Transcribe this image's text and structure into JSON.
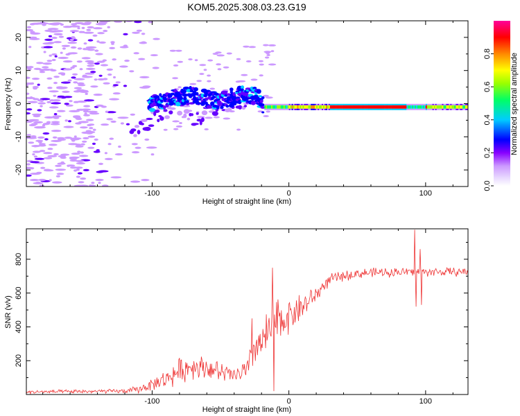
{
  "title": "KOM5.2025.308.03.23.G19",
  "chart_data": [
    {
      "type": "heatmap",
      "name": "spectrogram",
      "xlabel": "Height of straight line (km)",
      "ylabel": "Frequency (Hz)",
      "xlim": [
        -192,
        131
      ],
      "ylim": [
        -25,
        25
      ],
      "xticks": [
        {
          "v": -100,
          "label": "-100"
        },
        {
          "v": 0,
          "label": "0"
        },
        {
          "v": 100,
          "label": "100"
        }
      ],
      "yticks": [
        {
          "v": -20,
          "label": "-20"
        },
        {
          "v": -10,
          "label": "-10"
        },
        {
          "v": 0,
          "label": "0"
        },
        {
          "v": 10,
          "label": "10"
        },
        {
          "v": 20,
          "label": "20"
        }
      ],
      "colorbar": {
        "label": "Normalized spectral amplitude",
        "range": [
          0,
          1
        ],
        "ticks": [
          {
            "v": 0.0,
            "label": "0.0"
          },
          {
            "v": 0.2,
            "label": "0.2"
          },
          {
            "v": 0.4,
            "label": "0.4"
          },
          {
            "v": 0.6,
            "label": "0.6"
          },
          {
            "v": 0.8,
            "label": "0.8"
          }
        ],
        "colors": [
          "#ffffff",
          "#cc99ff",
          "#6600ff",
          "#0000ff",
          "#00ccff",
          "#00ff66",
          "#99ff00",
          "#ffff00",
          "#ff8800",
          "#ff0000",
          "#ff0099"
        ]
      },
      "main_band": [
        [
          -100,
          0
        ],
        [
          -90,
          1
        ],
        [
          -80,
          2
        ],
        [
          -70,
          2.5
        ],
        [
          -60,
          1.5
        ],
        [
          -50,
          1
        ],
        [
          -40,
          2
        ],
        [
          -30,
          3
        ],
        [
          -22,
          2
        ],
        [
          -18,
          -1
        ],
        [
          -10,
          -1
        ],
        [
          0,
          -1
        ],
        [
          20,
          -1
        ],
        [
          40,
          -1
        ],
        [
          60,
          -1
        ],
        [
          80,
          -1
        ],
        [
          100,
          -1
        ],
        [
          131,
          -1
        ]
      ],
      "side_band": [
        [
          -110,
          -8
        ],
        [
          -95,
          -3
        ],
        [
          -80,
          -1
        ],
        [
          -70,
          -5
        ],
        [
          -60,
          -3
        ],
        [
          -50,
          -1
        ],
        [
          -40,
          0
        ],
        [
          -30,
          1
        ]
      ]
    },
    {
      "type": "line",
      "name": "snr",
      "xlabel": "Height of straight line (km)",
      "ylabel": "SNR (v/v)",
      "xlim": [
        -192,
        131
      ],
      "ylim": [
        0,
        980
      ],
      "xticks": [
        {
          "v": -100,
          "label": "-100"
        },
        {
          "v": 0,
          "label": "0"
        },
        {
          "v": 100,
          "label": "100"
        }
      ],
      "yticks": [
        {
          "v": 200,
          "label": "200"
        },
        {
          "v": 400,
          "label": "400"
        },
        {
          "v": 600,
          "label": "600"
        },
        {
          "v": 800,
          "label": "800"
        }
      ],
      "color": "#ee3333",
      "trend": [
        [
          -192,
          15
        ],
        [
          -120,
          20
        ],
        [
          -110,
          30
        ],
        [
          -100,
          60
        ],
        [
          -90,
          90
        ],
        [
          -80,
          140
        ],
        [
          -70,
          170
        ],
        [
          -60,
          160
        ],
        [
          -50,
          130
        ],
        [
          -40,
          110
        ],
        [
          -30,
          140
        ],
        [
          -25,
          290
        ],
        [
          -20,
          300
        ],
        [
          -15,
          360
        ],
        [
          -10,
          420
        ],
        [
          -5,
          440
        ],
        [
          0,
          470
        ],
        [
          10,
          520
        ],
        [
          20,
          590
        ],
        [
          25,
          640
        ],
        [
          30,
          680
        ],
        [
          40,
          700
        ],
        [
          50,
          715
        ],
        [
          60,
          720
        ],
        [
          80,
          725
        ],
        [
          100,
          725
        ],
        [
          131,
          725
        ]
      ],
      "noise": [
        [
          -192,
          12
        ],
        [
          -120,
          15
        ],
        [
          -100,
          40
        ],
        [
          -80,
          90
        ],
        [
          -60,
          80
        ],
        [
          -40,
          60
        ],
        [
          -30,
          100
        ],
        [
          -20,
          150
        ],
        [
          -10,
          180
        ],
        [
          0,
          120
        ],
        [
          10,
          100
        ],
        [
          20,
          60
        ],
        [
          30,
          40
        ],
        [
          40,
          35
        ],
        [
          131,
          30
        ]
      ],
      "spikes": [
        {
          "x": 92,
          "y": 975
        },
        {
          "x": 93,
          "y": 520
        },
        {
          "x": 96,
          "y": 860
        },
        {
          "x": 97,
          "y": 530
        },
        {
          "x": -12,
          "y": 750
        },
        {
          "x": -11,
          "y": 20
        },
        {
          "x": -27,
          "y": 450
        }
      ]
    }
  ]
}
